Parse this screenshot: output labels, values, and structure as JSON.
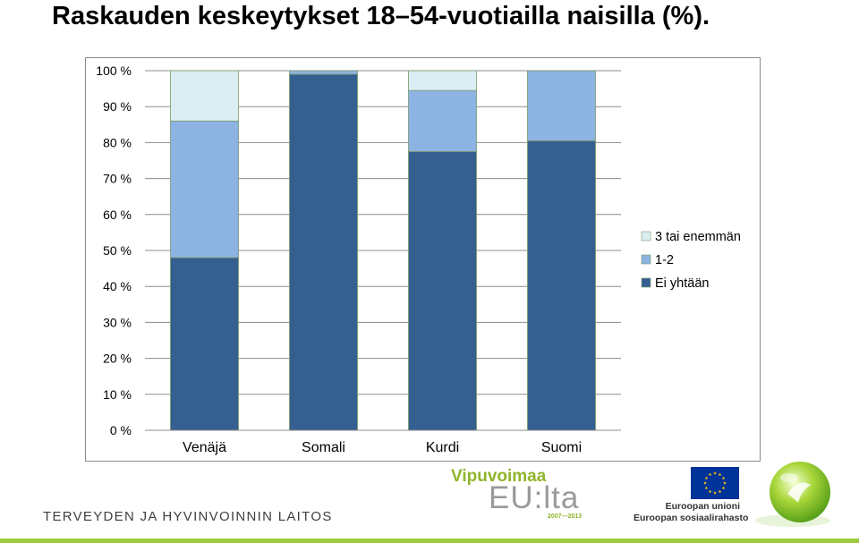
{
  "title": "Raskauden keskeytykset 18–54-vuotiailla naisilla (%).",
  "chart_data": {
    "type": "bar",
    "stacked": true,
    "categories": [
      "Venäjä",
      "Somali",
      "Kurdi",
      "Suomi"
    ],
    "series": [
      {
        "name": "Ei yhtään",
        "values": [
          48,
          99,
          77.5,
          80.5
        ],
        "color": "#365f91"
      },
      {
        "name": "1-2",
        "values": [
          38,
          1,
          17,
          19.5
        ],
        "color": "#8db3e2"
      },
      {
        "name": "3 tai enemmän",
        "values": [
          14,
          0,
          5.5,
          0
        ],
        "color": "#dbeef3"
      }
    ],
    "y_ticks": [
      "0 %",
      "10 %",
      "20 %",
      "30 %",
      "40 %",
      "50 %",
      "60 %",
      "70 %",
      "80 %",
      "90 %",
      "100 %"
    ],
    "ylim": [
      0,
      100
    ],
    "grid": true,
    "legend_position": "right"
  },
  "footer": {
    "organization": "TERVEYDEN JA HYVINVOINNIN LAITOS",
    "program_title": "Vipuvoimaa",
    "program_subtitle": "EU:lta",
    "program_years": "2007—2013",
    "eu_line1": "Euroopan unioni",
    "eu_line2": "Euroopan sosiaalirahasto",
    "eu_flag_color": "#003399",
    "eu_star_color": "#ffcc00",
    "accent_green": "#9ccc3d"
  }
}
